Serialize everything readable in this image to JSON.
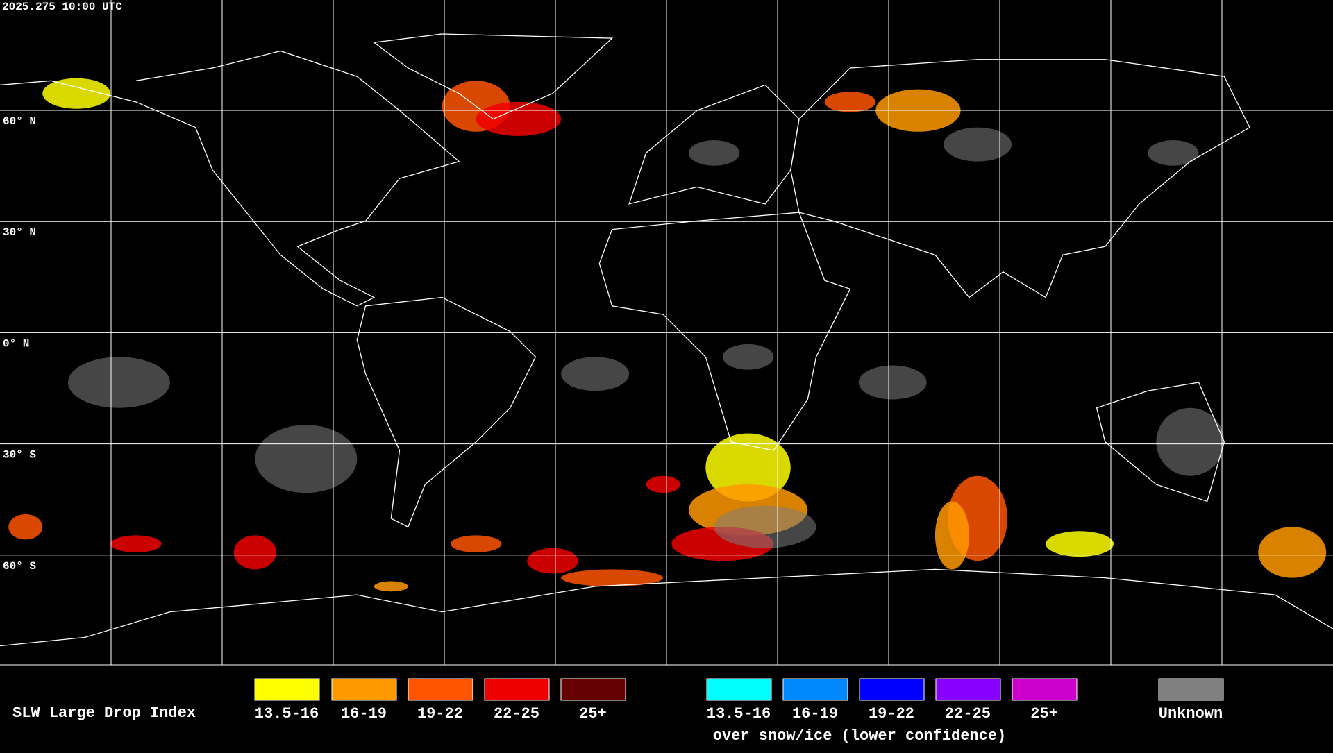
{
  "header": {
    "timestamp": "2025.275 10:00 UTC"
  },
  "map": {
    "latitude_labels": [
      "60° N",
      "30° N",
      "0° N",
      "30° S",
      "60° S"
    ]
  },
  "legend": {
    "title": "SLW Large Drop Index",
    "standard": [
      {
        "label": "13.5-16",
        "color": "#ffff00"
      },
      {
        "label": "16-19",
        "color": "#ff9900"
      },
      {
        "label": "19-22",
        "color": "#ff5500"
      },
      {
        "label": "22-25",
        "color": "#ee0000"
      },
      {
        "label": "25+",
        "color": "#660000"
      }
    ],
    "snow_ice": {
      "items": [
        {
          "label": "13.5-16",
          "color": "#00ffff"
        },
        {
          "label": "16-19",
          "color": "#0088ff"
        },
        {
          "label": "19-22",
          "color": "#0000ff"
        },
        {
          "label": "22-25",
          "color": "#8800ff"
        },
        {
          "label": "25+",
          "color": "#cc00cc"
        }
      ],
      "caption": "over snow/ice (lower confidence)"
    },
    "unknown": {
      "label": "Unknown",
      "color": "#808080"
    }
  }
}
